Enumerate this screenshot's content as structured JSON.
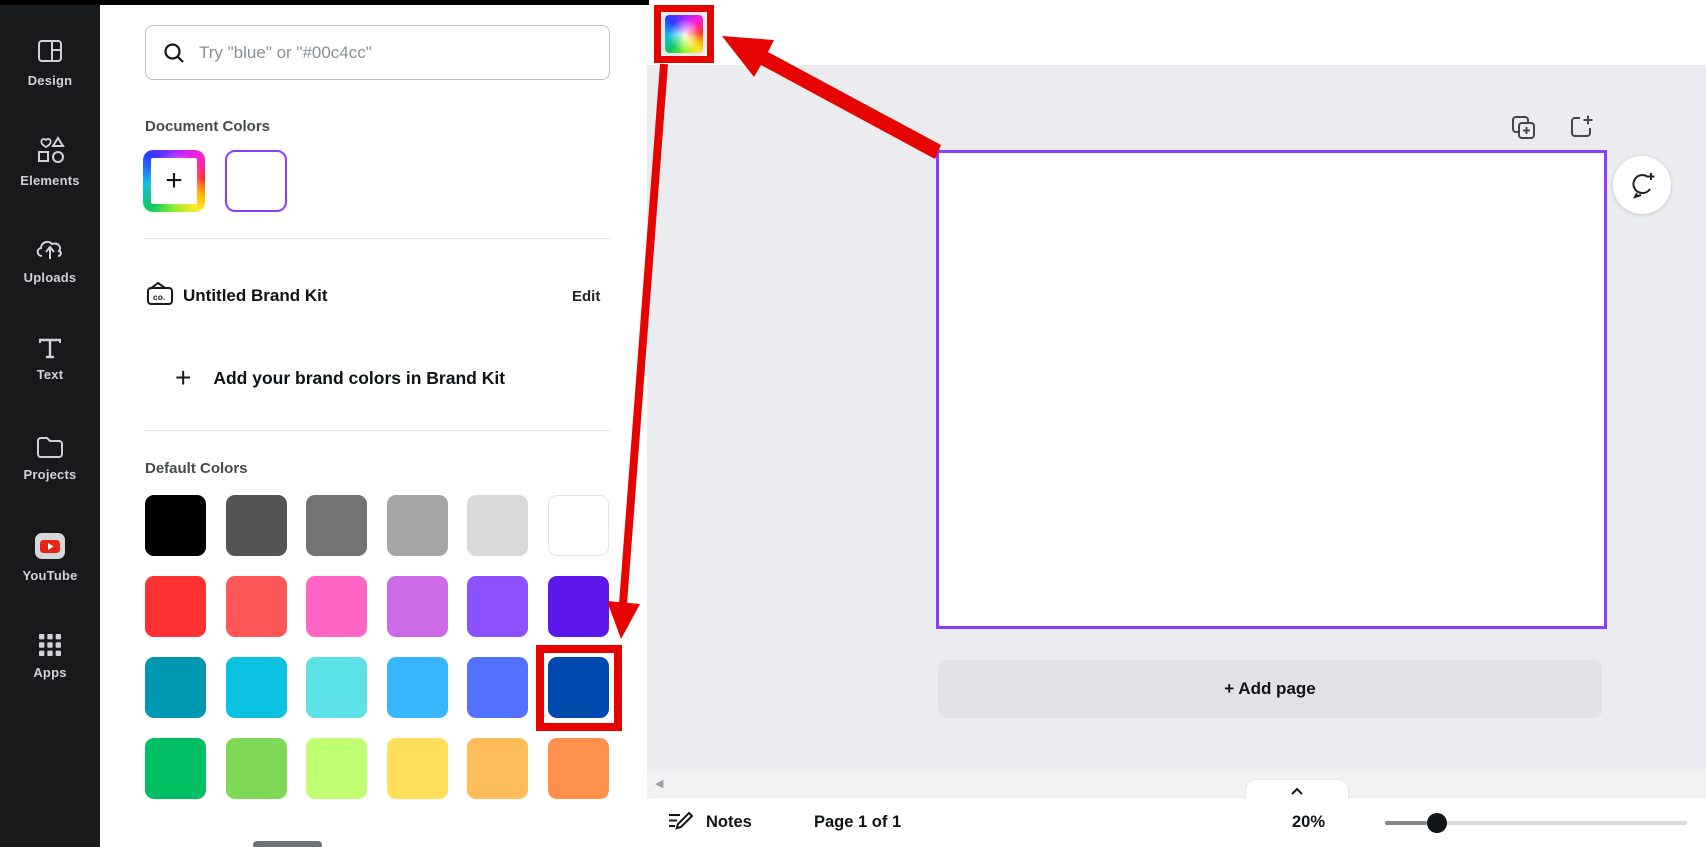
{
  "sidebar": {
    "items": [
      {
        "label": "Design"
      },
      {
        "label": "Elements"
      },
      {
        "label": "Uploads"
      },
      {
        "label": "Text"
      },
      {
        "label": "Projects"
      },
      {
        "label": "YouTube"
      },
      {
        "label": "Apps"
      }
    ]
  },
  "panel": {
    "search_placeholder": "Try \"blue\" or \"#00c4cc\"",
    "document_colors": {
      "title": "Document Colors",
      "swatches": [
        {
          "name": "add-new-color",
          "type": "rainbow-add"
        },
        {
          "name": "document-white",
          "color": "#ffffff",
          "selected": true
        }
      ]
    },
    "brand_kit": {
      "name": "Untitled Brand Kit",
      "edit_label": "Edit",
      "add_plus": "+",
      "add_label": "Add your brand colors in Brand Kit"
    },
    "default_colors": {
      "title": "Default Colors",
      "rows": [
        [
          "#000000",
          "#545454",
          "#737373",
          "#a6a6a6",
          "#d9d9d9",
          "#ffffff"
        ],
        [
          "#ff3131",
          "#ff5757",
          "#ff66c4",
          "#cb6ce6",
          "#8c52ff",
          "#5e17eb"
        ],
        [
          "#0097b2",
          "#0cc0df",
          "#5ce1e6",
          "#38b6ff",
          "#5271ff",
          "#004aad"
        ],
        [
          "#00bf63",
          "#7ed957",
          "#c1ff72",
          "#ffde59",
          "#ffbd59",
          "#ff914d"
        ]
      ]
    }
  },
  "canvas": {
    "page_border_color": "#8b3dff",
    "add_page_label": "+ Add page"
  },
  "footer": {
    "notes_label": "Notes",
    "page_indicator": "Page 1 of 1",
    "zoom_level": "20%"
  },
  "annotations": {
    "color": "#e60400",
    "highlighted_swatch_color": "#004aad",
    "targets": [
      "background-color-tile",
      "default-color-dark-blue"
    ]
  }
}
